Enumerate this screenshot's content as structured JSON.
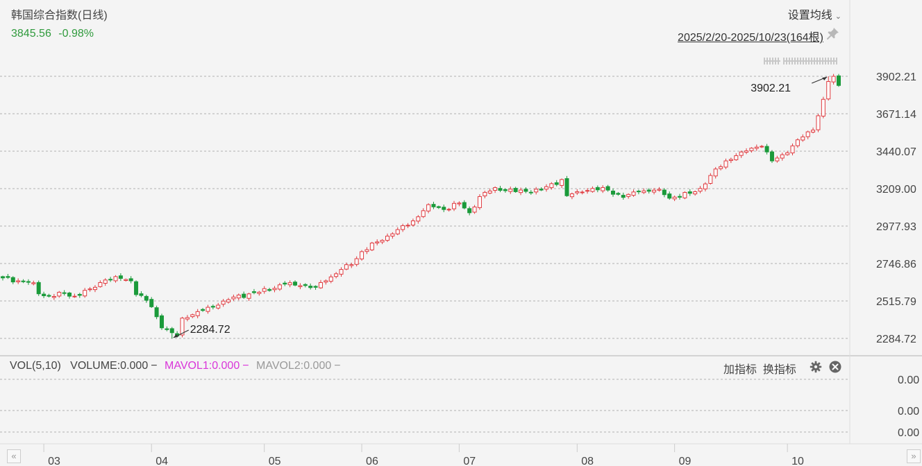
{
  "header": {
    "title": "韩国综合指数(日线)",
    "price": "3845.56",
    "change_pct": "-0.98%",
    "ma_setting_label": "设置均线",
    "date_range": "2025/2/20-2025/10/23(164根)"
  },
  "volume_panel": {
    "label": "VOL(5,10)",
    "volume": "VOLUME:0.000",
    "mavol1": "MAVOL1:0.000",
    "mavol2": "MAVOL2:0.000",
    "add_indicator": "加指标",
    "switch_indicator": "换指标",
    "y_ticks": [
      "0.00",
      "0.00",
      "0.00"
    ]
  },
  "colors": {
    "up": "#e0393e",
    "down": "#1a9a3a",
    "mavol1": "#d935d9",
    "mavol2": "#999999"
  },
  "icons": [
    "pin-icon",
    "gear-icon",
    "close-icon",
    "chevron-down-icon",
    "double-left-icon",
    "double-right-icon"
  ],
  "chart_data": {
    "type": "candlestick",
    "title": "韩国综合指数(日线)",
    "period": "日线",
    "date_range": "2025/2/20-2025/10/23",
    "bar_count": 164,
    "y_ticks": [
      "3902.21",
      "3671.14",
      "3440.07",
      "3209.00",
      "2977.93",
      "2746.86",
      "2515.79",
      "2284.72"
    ],
    "y_range": [
      2284.72,
      3902.21
    ],
    "x_ticks": [
      {
        "label": "03",
        "index": 8
      },
      {
        "label": "04",
        "index": 29
      },
      {
        "label": "05",
        "index": 51
      },
      {
        "label": "06",
        "index": 70
      },
      {
        "label": "07",
        "index": 89
      },
      {
        "label": "08",
        "index": 112
      },
      {
        "label": "09",
        "index": 131
      },
      {
        "label": "10",
        "index": 153
      }
    ],
    "annotations": [
      {
        "label": "3902.21",
        "type": "high",
        "value": 3902.21,
        "index": 161
      },
      {
        "label": "2284.72",
        "type": "low",
        "value": 2284.72,
        "index": 33
      }
    ],
    "grid": true,
    "close_anchors": [
      [
        0,
        2658
      ],
      [
        3,
        2640
      ],
      [
        6,
        2628
      ],
      [
        7,
        2560
      ],
      [
        9,
        2545
      ],
      [
        12,
        2562
      ],
      [
        14,
        2545
      ],
      [
        17,
        2590
      ],
      [
        20,
        2645
      ],
      [
        23,
        2655
      ],
      [
        25,
        2640
      ],
      [
        26,
        2555
      ],
      [
        28,
        2520
      ],
      [
        29,
        2480
      ],
      [
        31,
        2350
      ],
      [
        33,
        2320
      ],
      [
        34,
        2300
      ],
      [
        35,
        2410
      ],
      [
        38,
        2450
      ],
      [
        42,
        2490
      ],
      [
        45,
        2540
      ],
      [
        50,
        2570
      ],
      [
        55,
        2620
      ],
      [
        58,
        2610
      ],
      [
        61,
        2600
      ],
      [
        63,
        2640
      ],
      [
        66,
        2710
      ],
      [
        68,
        2740
      ],
      [
        70,
        2820
      ],
      [
        73,
        2880
      ],
      [
        76,
        2930
      ],
      [
        80,
        3010
      ],
      [
        83,
        3110
      ],
      [
        86,
        3080
      ],
      [
        89,
        3120
      ],
      [
        91,
        3060
      ],
      [
        93,
        3160
      ],
      [
        96,
        3215
      ],
      [
        100,
        3190
      ],
      [
        105,
        3200
      ],
      [
        109,
        3265
      ],
      [
        110,
        3165
      ],
      [
        112,
        3190
      ],
      [
        115,
        3210
      ],
      [
        118,
        3200
      ],
      [
        121,
        3155
      ],
      [
        124,
        3190
      ],
      [
        128,
        3205
      ],
      [
        130,
        3150
      ],
      [
        134,
        3180
      ],
      [
        136,
        3210
      ],
      [
        138,
        3290
      ],
      [
        141,
        3380
      ],
      [
        144,
        3435
      ],
      [
        147,
        3465
      ],
      [
        148,
        3470
      ],
      [
        150,
        3380
      ],
      [
        153,
        3430
      ],
      [
        155,
        3510
      ],
      [
        158,
        3570
      ],
      [
        160,
        3760
      ],
      [
        161,
        3870
      ],
      [
        162,
        3902
      ],
      [
        163,
        3845.56
      ]
    ]
  }
}
